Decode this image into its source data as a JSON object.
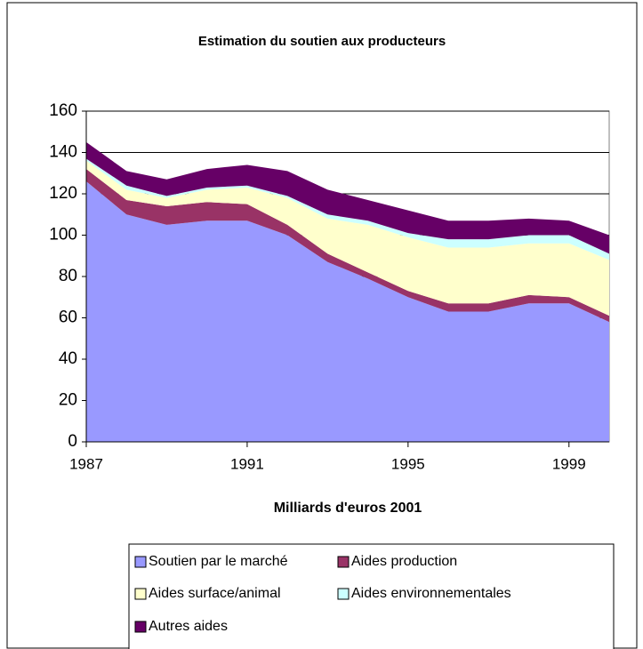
{
  "chart_data": {
    "type": "stacked_area",
    "title": "Estimation du soutien aux producteurs",
    "xlabel": "Milliards d'euros 2001",
    "x": [
      1987,
      1988,
      1989,
      1990,
      1991,
      1992,
      1993,
      1994,
      1995,
      1996,
      1997,
      1998,
      1999,
      2000
    ],
    "xlim": [
      1987,
      2000
    ],
    "xticks": [
      1987,
      1991,
      1995,
      1999
    ],
    "ylim": [
      0,
      160
    ],
    "yticks": [
      0,
      20,
      40,
      60,
      80,
      100,
      120,
      140,
      160
    ],
    "grid": true,
    "series": [
      {
        "name": "Soutien par le marché",
        "color": "#9999ff",
        "values": [
          126,
          110,
          105,
          107,
          107,
          100,
          87,
          79,
          70,
          63,
          63,
          67,
          67,
          58
        ]
      },
      {
        "name": "Aides production",
        "color": "#993366",
        "values": [
          6,
          7,
          9,
          9,
          8,
          5,
          4,
          3,
          3,
          4,
          4,
          4,
          3,
          3
        ]
      },
      {
        "name": "Aides surface/animal",
        "color": "#ffffcc",
        "values": [
          4,
          5,
          4,
          6,
          8,
          13,
          17,
          23,
          26,
          27,
          27,
          25,
          26,
          27
        ]
      },
      {
        "name": "Aides environnementales",
        "color": "#ccffff",
        "values": [
          1,
          2,
          1,
          1,
          1,
          1,
          2,
          2,
          2,
          4,
          4,
          4,
          4,
          3
        ]
      },
      {
        "name": "Autres aides",
        "color": "#660066",
        "values": [
          8,
          7,
          8,
          9,
          10,
          12,
          12,
          10,
          11,
          9,
          9,
          8,
          7,
          9
        ]
      }
    ]
  }
}
